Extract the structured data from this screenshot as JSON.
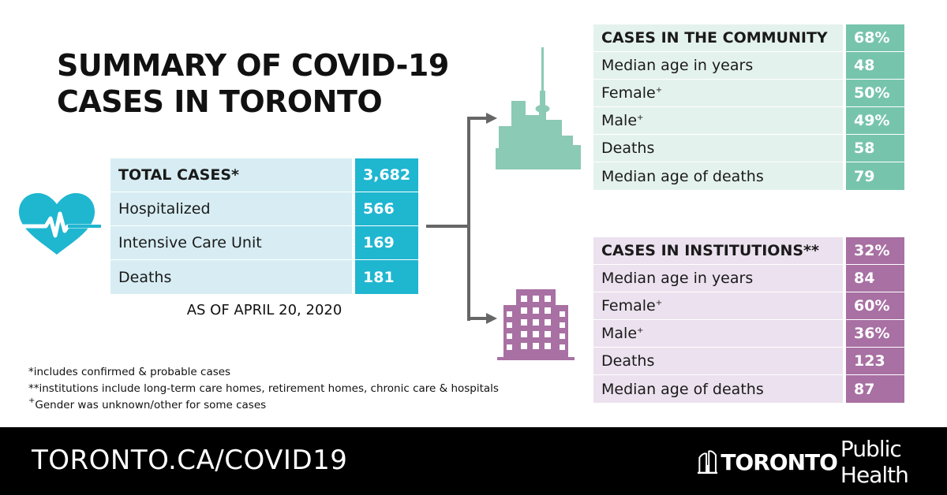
{
  "title": {
    "line1": "SUMMARY OF COVID-19",
    "line2": "CASES IN TORONTO"
  },
  "icons": {
    "heart": "heart-pulse-icon",
    "city": "city-skyline-icon",
    "building": "apartment-building-icon"
  },
  "colors": {
    "total_accent": "#1fb6d0",
    "community_accent": "#77c4ac",
    "institution_accent": "#a870a3",
    "footer_bg": "#000000"
  },
  "total": {
    "rows": [
      {
        "label": "TOTAL CASES",
        "mark": "*",
        "value": "3,682"
      },
      {
        "label": "Hospitalized",
        "mark": "",
        "value": "566"
      },
      {
        "label": "Intensive Care Unit",
        "mark": "",
        "value": "169"
      },
      {
        "label": "Deaths",
        "mark": "",
        "value": "181"
      }
    ],
    "as_of": "AS OF APRIL 20, 2020"
  },
  "community": {
    "rows": [
      {
        "label": "CASES IN THE COMMUNITY",
        "mark": "",
        "value": "68%"
      },
      {
        "label": "Median age in years",
        "mark": "",
        "value": "48"
      },
      {
        "label": "Female",
        "mark": "+",
        "value": "50%"
      },
      {
        "label": "Male",
        "mark": "+",
        "value": "49%"
      },
      {
        "label": "Deaths",
        "mark": "",
        "value": "58"
      },
      {
        "label": "Median age of deaths",
        "mark": "",
        "value": "79"
      }
    ]
  },
  "institutions": {
    "rows": [
      {
        "label": "CASES IN INSTITUTIONS",
        "mark": "**",
        "value": "32%"
      },
      {
        "label": "Median age in years",
        "mark": "",
        "value": "84"
      },
      {
        "label": "Female",
        "mark": "+",
        "value": "60%"
      },
      {
        "label": "Male",
        "mark": "+",
        "value": "36%"
      },
      {
        "label": "Deaths",
        "mark": "",
        "value": "123"
      },
      {
        "label": "Median age of deaths",
        "mark": "",
        "value": "87"
      }
    ]
  },
  "footnotes": {
    "note1": "*includes confirmed & probable cases",
    "note2": "**institutions include long-term care homes, retirement homes, chronic care & hospitals",
    "note3_mark": "+",
    "note3": "Gender was unknown/other for some cases"
  },
  "footer": {
    "url": "TORONTO.CA/COVID19",
    "logo_bold": "TORONTO",
    "logo_light": "Public Health"
  }
}
